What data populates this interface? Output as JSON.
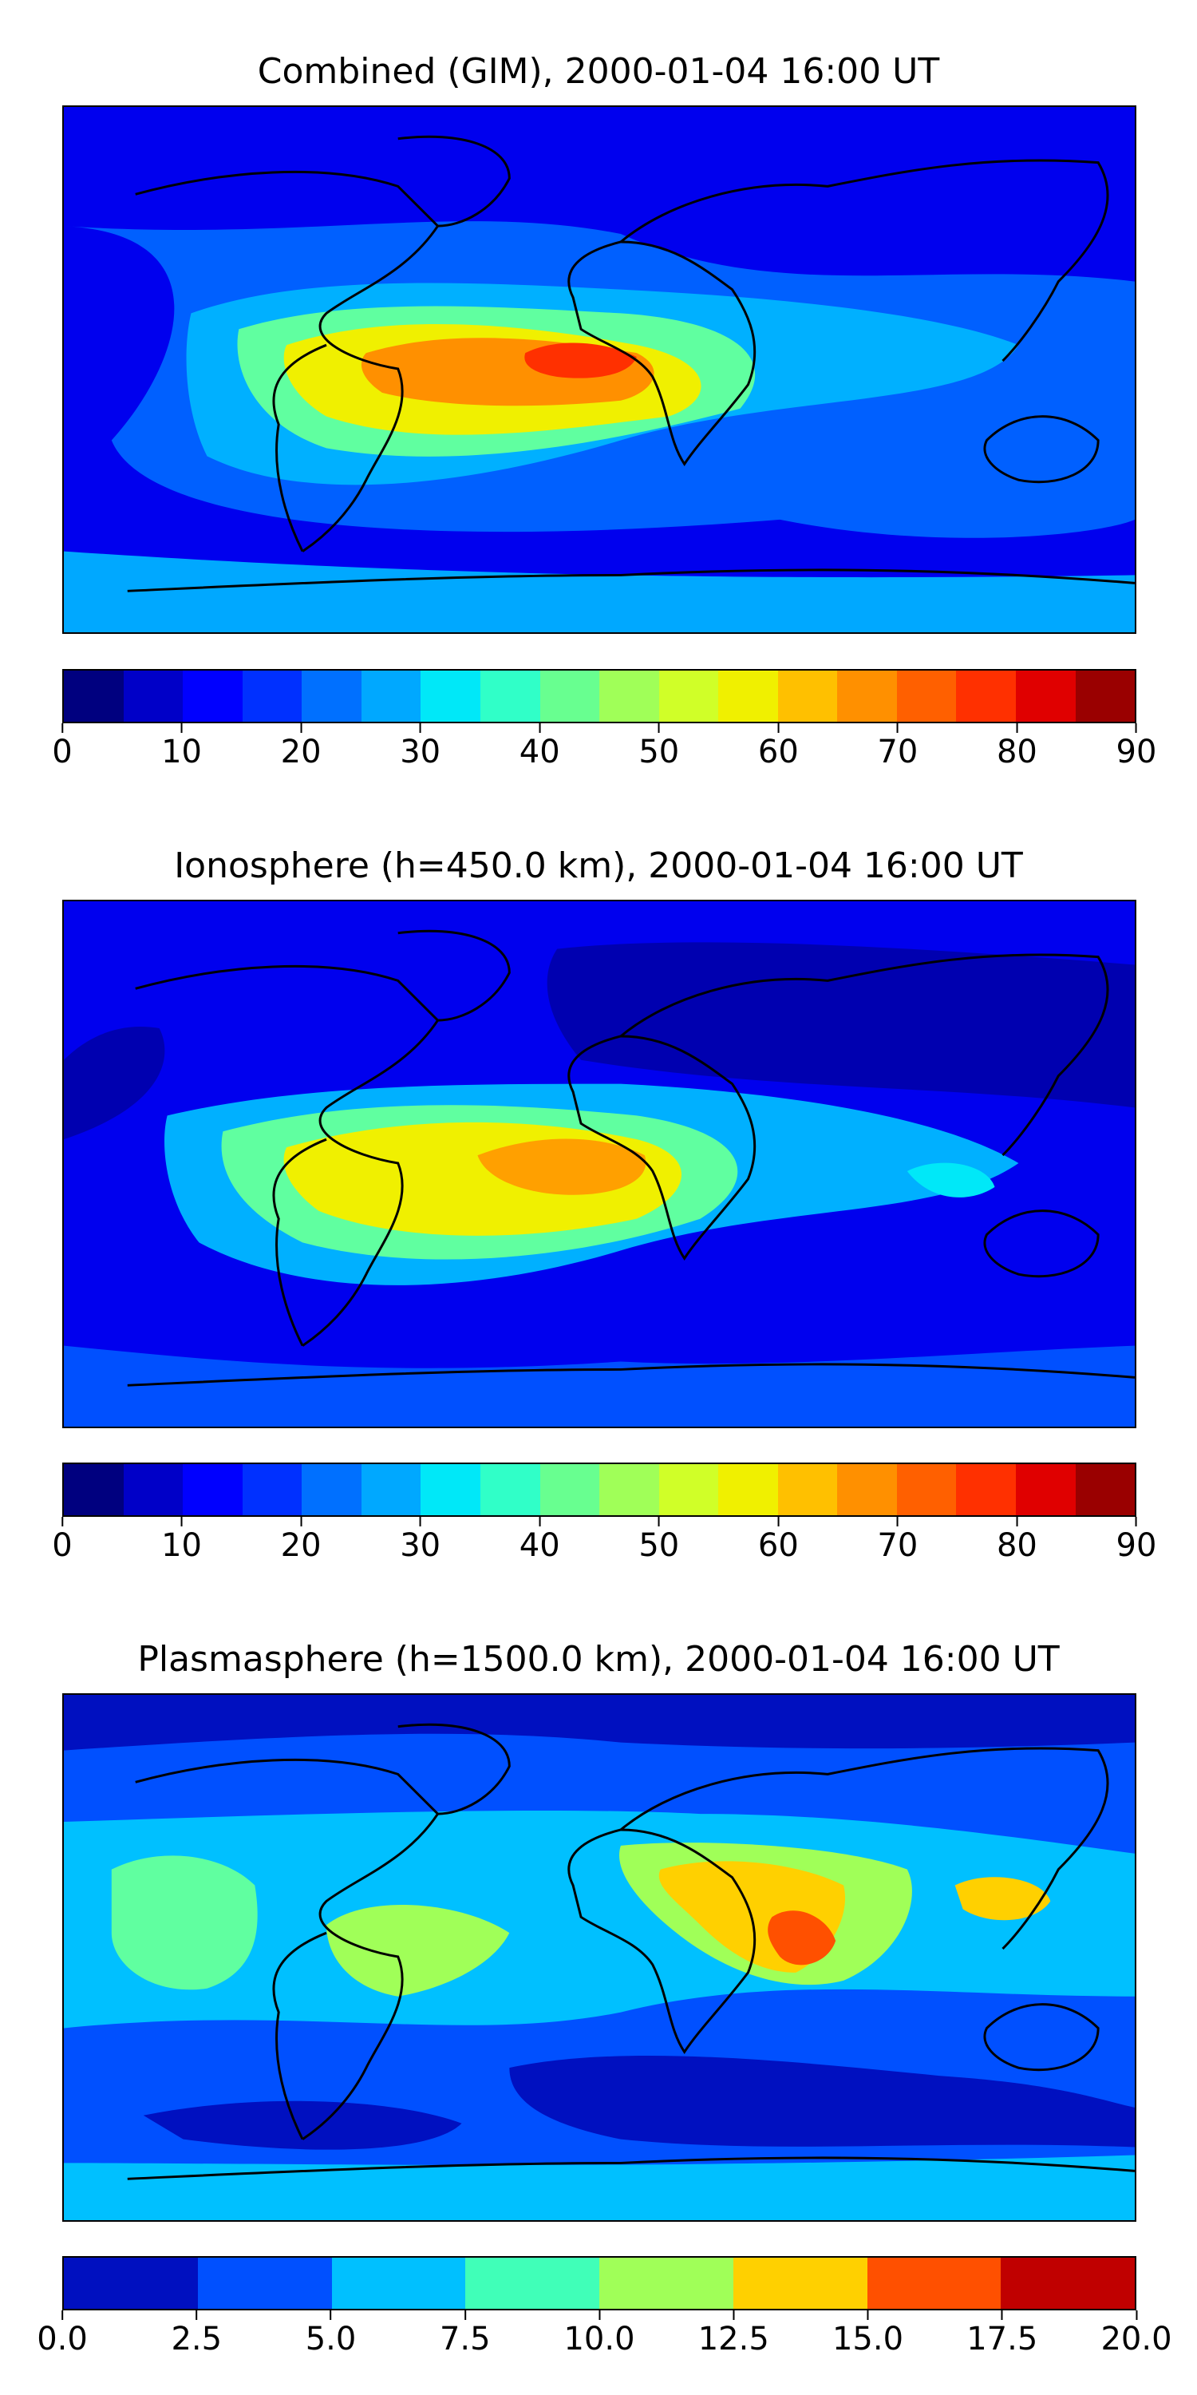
{
  "panels": [
    {
      "title": "Combined (GIM), 2000-01-04 16:00 UT",
      "colorbar": {
        "ticks": [
          "0",
          "10",
          "20",
          "30",
          "40",
          "50",
          "60",
          "70",
          "80",
          "90"
        ],
        "colors": [
          "#00007f",
          "#0000c8",
          "#0000ff",
          "#0030ff",
          "#0070ff",
          "#00a8ff",
          "#00e8f8",
          "#30ffc8",
          "#68ff90",
          "#a0ff58",
          "#d0ff28",
          "#f0f000",
          "#ffc000",
          "#ff9000",
          "#ff6000",
          "#ff3000",
          "#e00000",
          "#9a0000"
        ]
      }
    },
    {
      "title": "Ionosphere  (h=450.0 km), 2000-01-04 16:00 UT",
      "colorbar": {
        "ticks": [
          "0",
          "10",
          "20",
          "30",
          "40",
          "50",
          "60",
          "70",
          "80",
          "90"
        ],
        "colors": [
          "#00007f",
          "#0000c8",
          "#0000ff",
          "#0030ff",
          "#0070ff",
          "#00a8ff",
          "#00e8f8",
          "#30ffc8",
          "#68ff90",
          "#a0ff58",
          "#d0ff28",
          "#f0f000",
          "#ffc000",
          "#ff9000",
          "#ff6000",
          "#ff3000",
          "#e00000",
          "#9a0000"
        ]
      }
    },
    {
      "title": "Plasmasphere (h=1500.0 km), 2000-01-04 16:00 UT",
      "colorbar": {
        "ticks": [
          "0.0",
          "2.5",
          "5.0",
          "7.5",
          "10.0",
          "12.5",
          "15.0",
          "17.5",
          "20.0"
        ],
        "colors": [
          "#0010c0",
          "#0050ff",
          "#00c0ff",
          "#40ffb8",
          "#a0ff58",
          "#ffd000",
          "#ff5000",
          "#c00000"
        ]
      }
    }
  ]
}
